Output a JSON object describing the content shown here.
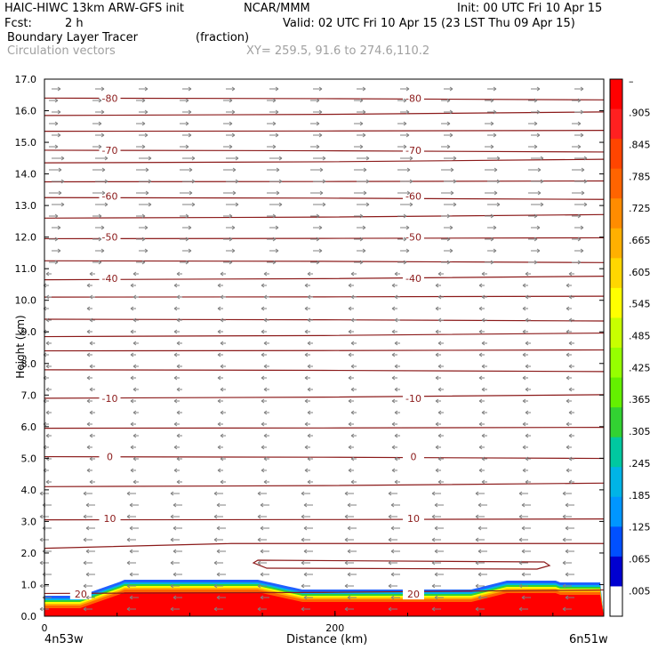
{
  "header": {
    "model_line": "HAIC-HIWC 13km ARW-GFS init",
    "org": "NCAR/MMM",
    "init": "Init: 00 UTC Fri 10 Apr 15",
    "fcst_label": "Fcst:",
    "fcst_value": "2 h",
    "valid": "Valid: 02 UTC Fri 10 Apr 15 (23 LST Thu 09 Apr 15)",
    "field_name": "Boundary Layer Tracer",
    "field_unit": "(fraction)",
    "vector_label": "Circulation vectors",
    "xy_label": "XY= 259.5, 91.6 to 274.6,110.2"
  },
  "colors": {
    "contour": "#8b1a1a",
    "vector": "#808080",
    "frame": "#000000"
  },
  "chart_data": {
    "type": "cross-section",
    "ylabel": "Height (km)",
    "xlabel": "Distance (km)",
    "xlim": [
      0,
      385
    ],
    "ylim": [
      0,
      17
    ],
    "yticks": [
      "0.0",
      "1.0",
      "2.0",
      "3.0",
      "4.0",
      "5.0",
      "6.0",
      "7.0",
      "8.0",
      "9.0",
      "10.0",
      "11.0",
      "12.0",
      "13.0",
      "14.0",
      "15.0",
      "16.0",
      "17.0"
    ],
    "xticks": [
      {
        "x": 0,
        "label": "0"
      },
      {
        "x": 200,
        "label": "200"
      }
    ],
    "x_left_label": "4n53w",
    "x_right_label": "6n51w",
    "temperature_contour_labels": [
      {
        "label": "-80",
        "x": [
          45,
          254
        ],
        "y": 16.4
      },
      {
        "label": "-70",
        "x": [
          45,
          254
        ],
        "y": 14.75
      },
      {
        "label": "-60",
        "x": [
          45,
          254
        ],
        "y": 13.3
      },
      {
        "label": "-50",
        "x": [
          45,
          254
        ],
        "y": 12.0
      },
      {
        "label": "-40",
        "x": [
          45,
          254
        ],
        "y": 10.7
      },
      {
        "label": "-10",
        "x": [
          45,
          254
        ],
        "y": 6.9
      },
      {
        "label": "0",
        "x": [
          45,
          254
        ],
        "y": 5.05
      },
      {
        "label": "10",
        "x": [
          45,
          254
        ],
        "y": 3.1
      },
      {
        "label": "20",
        "x": [
          25,
          254
        ],
        "y": 0.7
      }
    ],
    "colorbar": {
      "labels": [
        "–",
        ".905",
        ".845",
        ".785",
        ".725",
        ".665",
        ".605",
        ".545",
        ".485",
        ".425",
        ".365",
        ".305",
        ".245",
        ".185",
        ".125",
        ".065",
        ".005"
      ],
      "colors": [
        "#ff0000",
        "#ff2020",
        "#ff4500",
        "#ff6400",
        "#ff8c00",
        "#ffb000",
        "#ffd700",
        "#ffff00",
        "#c8ff00",
        "#96ff00",
        "#64f000",
        "#32d232",
        "#00c8a0",
        "#00b4e6",
        "#0096ff",
        "#0050ff",
        "#0000d0",
        "#ffffff"
      ]
    }
  }
}
